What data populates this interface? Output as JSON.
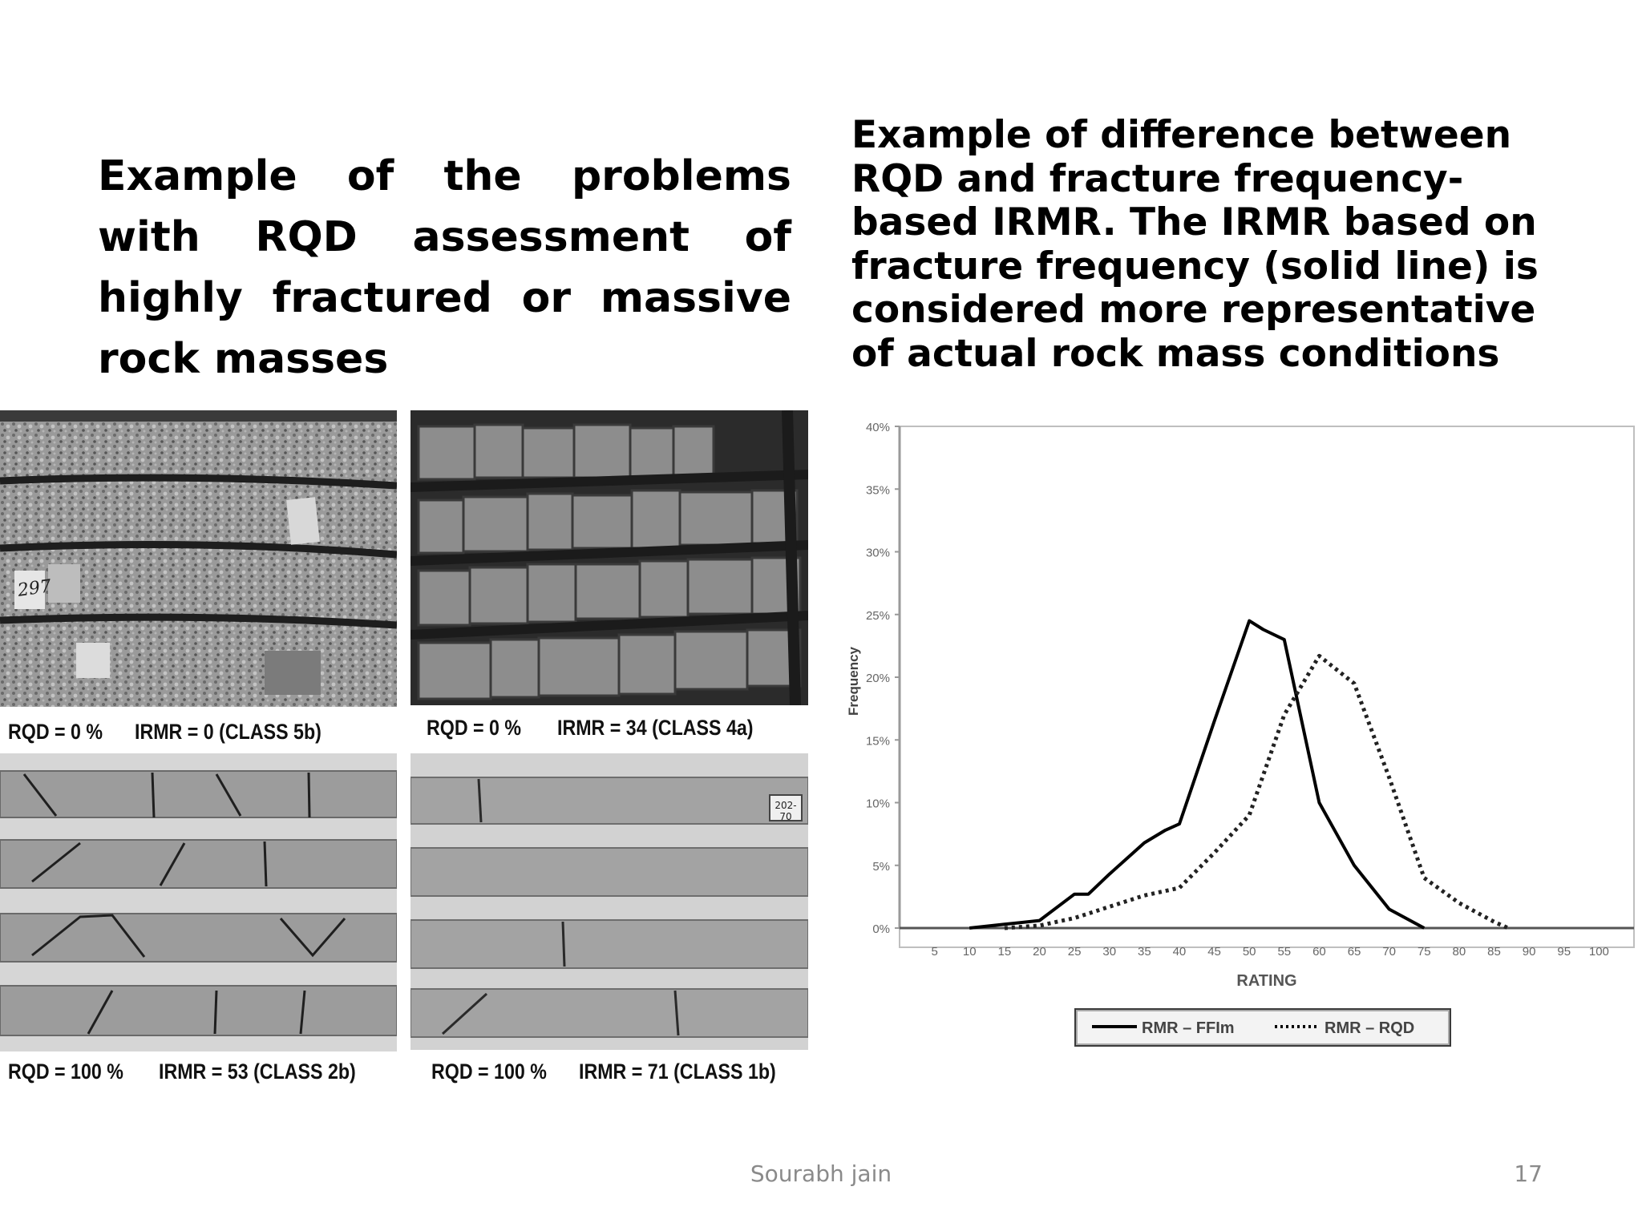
{
  "slide": {
    "left_heading": "Example of the problems with RQD assessment of highly fractured or massive rock masses",
    "right_heading": "Example of difference between RQD and fracture frequency-based IRMR. The IRMR based on fracture frequency (solid line) is considered more representative of actual rock mass conditions",
    "author": "Sourabh jain",
    "page_number": "17"
  },
  "photos": [
    {
      "rqd": "RQD = 0 %",
      "irmr": "IRMR = 0 (CLASS 5b)",
      "core_label": "297"
    },
    {
      "rqd": "RQD = 0 %",
      "irmr": "IRMR = 34 (CLASS 4a)"
    },
    {
      "rqd": "RQD = 100 %",
      "irmr": "IRMR = 53 (CLASS 2b)"
    },
    {
      "rqd": "RQD = 100 %",
      "irmr": "IRMR = 71 (CLASS 1b)",
      "core_label": "202-70"
    }
  ],
  "chart_data": {
    "type": "line",
    "xlabel": "RATING",
    "ylabel": "Frequency",
    "x_ticks": [
      "5",
      "10",
      "15",
      "20",
      "25",
      "30",
      "35",
      "40",
      "45",
      "50",
      "55",
      "60",
      "65",
      "70",
      "75",
      "80",
      "85",
      "90",
      "95",
      "100"
    ],
    "y_ticks": [
      "0%",
      "5%",
      "10%",
      "15%",
      "20%",
      "25%",
      "30%",
      "35%",
      "40%"
    ],
    "xlim": [
      0,
      105
    ],
    "ylim": [
      0,
      40
    ],
    "legend": "bottom",
    "grid": false,
    "series": [
      {
        "name": "RMR – FFIm",
        "style": "solid",
        "x": [
          10,
          15,
          20,
          25,
          27,
          30,
          35,
          38,
          40,
          45,
          50,
          52,
          55,
          60,
          65,
          70,
          75
        ],
        "y": [
          0,
          0.3,
          0.6,
          2.7,
          2.7,
          4.3,
          6.8,
          7.8,
          8.3,
          16.5,
          24.5,
          23.8,
          23,
          10,
          5,
          1.5,
          0
        ]
      },
      {
        "name": "RMR – RQD",
        "style": "dotted",
        "x": [
          15,
          20,
          25,
          30,
          35,
          40,
          45,
          50,
          55,
          60,
          65,
          70,
          75,
          80,
          85,
          87
        ],
        "y": [
          0,
          0.2,
          0.8,
          1.7,
          2.6,
          3.2,
          6,
          9,
          17,
          21.7,
          19.5,
          12,
          4,
          2,
          0.5,
          0
        ]
      }
    ]
  }
}
